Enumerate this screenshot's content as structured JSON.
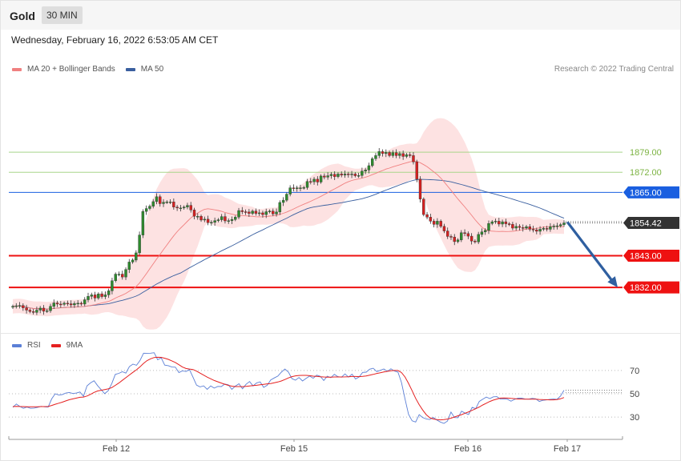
{
  "header": {
    "title": "Gold",
    "timeframe": "30 MIN"
  },
  "datetime": "Wednesday, February 16, 2022 6:53:05 AM CET",
  "credit": "Research © 2022 Trading Central",
  "legend_main": [
    {
      "label": "MA 20 + Bollinger Bands",
      "color": "#f08080"
    },
    {
      "label": "MA 50",
      "color": "#3a5f9f"
    }
  ],
  "legend_rsi": [
    {
      "label": "RSI",
      "color": "#5b7fd6"
    },
    {
      "label": "9MA",
      "color": "#e52020"
    }
  ],
  "colors": {
    "up": "#2e8b2e",
    "down": "#d62020",
    "resistance": "#7cb342",
    "support": "#ee1111",
    "pivot": "#1a5fe0",
    "arrow": "#2f5fa0"
  },
  "chart_data": {
    "type": "candlestick",
    "x_ticks": [
      "Feb 12",
      "Feb 15",
      "Feb 16",
      "Feb 17"
    ],
    "y_range": [
      1817,
      1906
    ],
    "levels": [
      {
        "value": 1879.0,
        "label": "1879.00",
        "kind": "resistance"
      },
      {
        "value": 1872.0,
        "label": "1872.00",
        "kind": "resistance"
      },
      {
        "value": 1865.0,
        "label": "1865.00",
        "kind": "pivot"
      },
      {
        "value": 1843.0,
        "label": "1843.00",
        "kind": "support"
      },
      {
        "value": 1832.0,
        "label": "1832.00",
        "kind": "support"
      }
    ],
    "current_price": {
      "value": 1854.42,
      "label": "1854.42"
    },
    "forecast": {
      "from": 1854.4,
      "to": 1832.0,
      "direction": "down"
    },
    "closes": [
      1825.4,
      1825.6,
      1825.7,
      1824.9,
      1824.1,
      1823.6,
      1823.3,
      1824.1,
      1824.8,
      1823.7,
      1823.9,
      1825.4,
      1826.6,
      1826.2,
      1826.1,
      1826.5,
      1826.3,
      1825.9,
      1826.4,
      1826.5,
      1826.2,
      1827.7,
      1828.9,
      1829.4,
      1828.3,
      1829.7,
      1828.8,
      1829.4,
      1830.8,
      1834.3,
      1836.6,
      1836.6,
      1835.6,
      1838.2,
      1840.8,
      1841.5,
      1844.0,
      1850.2,
      1858.4,
      1859.4,
      1860.2,
      1861.8,
      1863.5,
      1861.1,
      1861.6,
      1861.7,
      1861.7,
      1859.9,
      1859.6,
      1859.6,
      1859.9,
      1860.5,
      1858.9,
      1856.7,
      1856.7,
      1855.4,
      1855.7,
      1854.5,
      1854.6,
      1855.2,
      1855.5,
      1856.6,
      1855.1,
      1855.2,
      1855.6,
      1856.4,
      1858.7,
      1858.3,
      1858.2,
      1857.7,
      1858.5,
      1857.7,
      1857.9,
      1857.3,
      1858.3,
      1858.5,
      1857.5,
      1858.2,
      1861.5,
      1862.3,
      1864.4,
      1866.6,
      1866.3,
      1866.6,
      1866.6,
      1866.7,
      1868.8,
      1868.7,
      1869.6,
      1868.6,
      1870.7,
      1870.3,
      1870.8,
      1871.3,
      1870.5,
      1871.4,
      1871.0,
      1871.4,
      1871.2,
      1871.4,
      1870.8,
      1870.9,
      1872.4,
      1872.8,
      1874.3,
      1876.7,
      1877.8,
      1879.2,
      1878.5,
      1878.9,
      1877.8,
      1878.8,
      1877.8,
      1878.5,
      1877.5,
      1878.1,
      1877.8,
      1875.6,
      1869.6,
      1862.7,
      1857.3,
      1856.4,
      1855.0,
      1853.9,
      1855.0,
      1853.2,
      1851.6,
      1849.7,
      1849.5,
      1847.9,
      1848.5,
      1851.0,
      1850.7,
      1849.8,
      1848.1,
      1847.8,
      1850.4,
      1851.3,
      1851.8,
      1854.2,
      1854.8,
      1855.0,
      1854.0,
      1854.8,
      1854.1,
      1853.9,
      1852.6,
      1853.2,
      1852.8,
      1852.6,
      1853.1,
      1852.2,
      1852.0,
      1851.5,
      1852.2,
      1852.5,
      1852.2,
      1853.1,
      1853.3,
      1853.4,
      1853.8,
      1854.4
    ],
    "rsi": {
      "name": "RSI",
      "levels": [
        30,
        50,
        70
      ],
      "y_range": [
        15,
        85
      ],
      "values": [
        38.4,
        41.2,
        39.1,
        37.6,
        38.6,
        37.5,
        37.7,
        38.3,
        39.2,
        38.8,
        38.6,
        45.6,
        50.0,
        48.9,
        49.3,
        50.6,
        51.1,
        50.2,
        50.6,
        51.5,
        47.8,
        56.8,
        59.3,
        61.2,
        57.0,
        53.5,
        50.1,
        52.7,
        58.7,
        66.6,
        67.5,
        68.9,
        67.7,
        73.3,
        75.4,
        74.4,
        78.6,
        84.8,
        84.7,
        84.8,
        85.2,
        79.2,
        80.8,
        74.6,
        74.1,
        72.9,
        72.8,
        68.2,
        69.7,
        69.1,
        70.7,
        64.2,
        57.4,
        55.9,
        56.8,
        53.8,
        56.7,
        54.9,
        56.3,
        56.2,
        58.3,
        57.7,
        53.8,
        56.6,
        58.6,
        54.3,
        58.1,
        60.5,
        56.7,
        59.3,
        60.2,
        55.5,
        57.3,
        61.9,
        63.6,
        65.2,
        68.5,
        71.2,
        68.6,
        63.0,
        61.7,
        63.9,
        61.0,
        63.2,
        65.2,
        63.3,
        65.9,
        65.0,
        61.4,
        65.0,
        63.8,
        66.7,
        64.7,
        64.2,
        67.0,
        64.3,
        66.8,
        62.7,
        64.4,
        68.3,
        68.5,
        71.1,
        71.9,
        69.0,
        70.1,
        71.3,
        69.2,
        71.4,
        69.5,
        68.6,
        59.7,
        45.7,
        32.4,
        26.8,
        25.8,
        32.1,
        29.6,
        28.4,
        27.9,
        29.7,
        27.5,
        25.8,
        24.6,
        26.6,
        34.3,
        29.6,
        29.5,
        35.1,
        33.4,
        32.2,
        38.3,
        37.2,
        43.4,
        45.4,
        47.2,
        45.9,
        47.4,
        47.5,
        45.4,
        45.7,
        45.3,
        43.6,
        45.2,
        46.2,
        46.2,
        45.5,
        45.4,
        46.1,
        45.7,
        43.4,
        44.4,
        44.7,
        45.2,
        45.5,
        45.2,
        48.1,
        53.0
      ]
    },
    "rsi_ma": {
      "name": "9MA",
      "values": [
        39.0,
        39.2,
        39.1,
        39.0,
        38.9,
        38.9,
        38.8,
        38.9,
        39.0,
        39.0,
        39.1,
        40.0,
        41.0,
        41.9,
        42.8,
        43.9,
        44.9,
        45.6,
        46.3,
        47.0,
        47.2,
        48.1,
        49.5,
        51.2,
        52.4,
        53.0,
        53.6,
        54.2,
        55.3,
        57.2,
        59.2,
        61.5,
        63.8,
        66.1,
        68.4,
        70.6,
        73.1,
        76.1,
        78.5,
        80.0,
        81.1,
        81.3,
        81.2,
        80.5,
        79.5,
        78.2,
        76.8,
        74.9,
        72.9,
        71.7,
        71.2,
        70.8,
        69.4,
        67.7,
        66.0,
        64.3,
        62.8,
        61.4,
        60.3,
        59.2,
        58.2,
        57.2,
        56.5,
        56.2,
        56.2,
        56.1,
        56.3,
        56.7,
        57.0,
        57.3,
        57.7,
        58.1,
        58.5,
        58.8,
        59.4,
        60.1,
        61.0,
        62.2,
        63.6,
        64.7,
        65.4,
        65.7,
        65.8,
        65.8,
        65.5,
        65.1,
        64.9,
        64.6,
        64.4,
        64.3,
        64.3,
        64.4,
        64.4,
        64.4,
        64.5,
        64.6,
        64.8,
        64.8,
        64.7,
        64.9,
        65.3,
        65.9,
        66.6,
        67.4,
        68.0,
        68.7,
        69.2,
        69.7,
        70.0,
        70.0,
        68.2,
        64.4,
        58.9,
        52.6,
        46.1,
        40.7,
        36.1,
        32.1,
        29.5,
        28.4,
        27.8,
        27.6,
        27.8,
        28.3,
        29.1,
        30.1,
        31.1,
        32.1,
        33.3,
        34.5,
        35.8,
        37.2,
        38.7,
        40.4,
        41.9,
        43.4,
        44.6,
        45.5,
        46.3,
        46.4,
        46.3,
        46.0,
        45.8,
        45.5,
        45.5,
        45.4,
        45.3,
        45.3,
        45.3,
        45.1,
        45.0,
        44.9,
        44.8,
        44.8,
        45.0,
        45.7,
        46.8
      ]
    }
  }
}
